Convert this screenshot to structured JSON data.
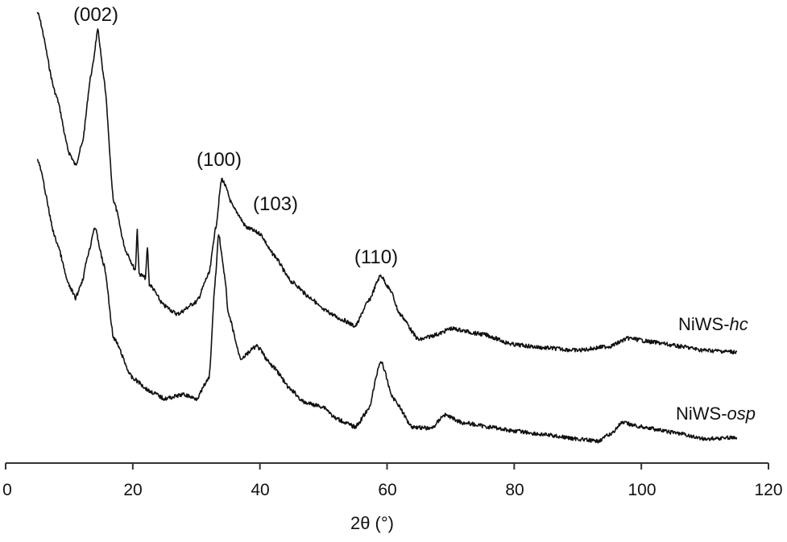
{
  "chart_data": {
    "type": "line",
    "title": "",
    "xlabel": "2θ (°)",
    "ylabel": "",
    "xlim": [
      0,
      120
    ],
    "x_ticks": [
      0,
      20,
      40,
      60,
      80,
      100,
      120
    ],
    "y_axis_visible": false,
    "y_units": "intensity (a.u., arbitrary, curves offset vertically)",
    "grid": false,
    "legend_position": "inline labels at right end of curves",
    "series": [
      {
        "name": "NiWS-hc",
        "name_prefix": "NiWS-",
        "name_suffix": "hc",
        "points": [
          [
            5,
            560
          ],
          [
            8,
            455
          ],
          [
            10,
            385
          ],
          [
            11,
            370
          ],
          [
            12,
            395
          ],
          [
            13.5,
            485
          ],
          [
            14.5,
            537
          ],
          [
            15.5,
            475
          ],
          [
            17,
            325
          ],
          [
            19,
            262
          ],
          [
            20.4,
            240
          ],
          [
            20.7,
            290
          ],
          [
            21,
            235
          ],
          [
            22,
            230
          ],
          [
            22.3,
            268
          ],
          [
            22.6,
            222
          ],
          [
            25,
            195
          ],
          [
            27,
            185
          ],
          [
            30,
            200
          ],
          [
            32,
            235
          ],
          [
            33,
            290
          ],
          [
            34,
            353
          ],
          [
            36,
            315
          ],
          [
            38,
            292
          ],
          [
            40,
            285
          ],
          [
            42,
            260
          ],
          [
            45,
            225
          ],
          [
            48,
            205
          ],
          [
            50,
            190
          ],
          [
            53,
            178
          ],
          [
            55,
            170
          ],
          [
            57,
            200
          ],
          [
            59,
            233
          ],
          [
            60.5,
            215
          ],
          [
            62,
            185
          ],
          [
            65,
            153
          ],
          [
            68,
            160
          ],
          [
            70,
            167
          ],
          [
            75,
            160
          ],
          [
            80,
            147
          ],
          [
            85,
            143
          ],
          [
            90,
            140
          ],
          [
            95,
            145
          ],
          [
            98,
            155
          ],
          [
            102,
            150
          ],
          [
            106,
            145
          ],
          [
            110,
            140
          ],
          [
            115,
            138
          ]
        ]
      },
      {
        "name": "NiWS-osp",
        "name_prefix": "NiWS-",
        "name_suffix": "osp",
        "points": [
          [
            5,
            377
          ],
          [
            8,
            275
          ],
          [
            10,
            220
          ],
          [
            11,
            205
          ],
          [
            12,
            225
          ],
          [
            13,
            260
          ],
          [
            14,
            293
          ],
          [
            15.5,
            245
          ],
          [
            17,
            155
          ],
          [
            20,
            105
          ],
          [
            23,
            88
          ],
          [
            25,
            80
          ],
          [
            28,
            85
          ],
          [
            30,
            80
          ],
          [
            32,
            105
          ],
          [
            33,
            230
          ],
          [
            33.5,
            285
          ],
          [
            34.5,
            230
          ],
          [
            35,
            185
          ],
          [
            37,
            130
          ],
          [
            39.5,
            145
          ],
          [
            42,
            120
          ],
          [
            45,
            90
          ],
          [
            47,
            75
          ],
          [
            50,
            70
          ],
          [
            52,
            55
          ],
          [
            55,
            45
          ],
          [
            57,
            65
          ],
          [
            59,
            127
          ],
          [
            61,
            80
          ],
          [
            64,
            45
          ],
          [
            67,
            43
          ],
          [
            69,
            60
          ],
          [
            72,
            50
          ],
          [
            76,
            45
          ],
          [
            80,
            40
          ],
          [
            85,
            35
          ],
          [
            90,
            30
          ],
          [
            93,
            27
          ],
          [
            95,
            35
          ],
          [
            97,
            50
          ],
          [
            100,
            45
          ],
          [
            105,
            38
          ],
          [
            110,
            30
          ],
          [
            115,
            32
          ]
        ]
      }
    ],
    "annotations": [
      {
        "text": "(002)",
        "x": 14.5,
        "series": "NiWS-hc"
      },
      {
        "text": "(100)",
        "x": 34,
        "series": "NiWS-hc"
      },
      {
        "text": "(103)",
        "x": 42,
        "series": "NiWS-hc"
      },
      {
        "text": "(110)",
        "x": 59,
        "series": "NiWS-hc"
      }
    ]
  },
  "labels": {
    "peaks": [
      "(002)",
      "(100)",
      "(103)",
      "(110)"
    ],
    "ticks": [
      "0",
      "20",
      "40",
      "60",
      "80",
      "100",
      "120"
    ],
    "xlabel": "2θ (°)",
    "hc_prefix": "NiWS-",
    "hc_suffix": "hc",
    "osp_prefix": "NiWS-",
    "osp_suffix": "osp"
  },
  "colors": {
    "line": "#111111",
    "axis": "#333333",
    "background": "#ffffff"
  }
}
